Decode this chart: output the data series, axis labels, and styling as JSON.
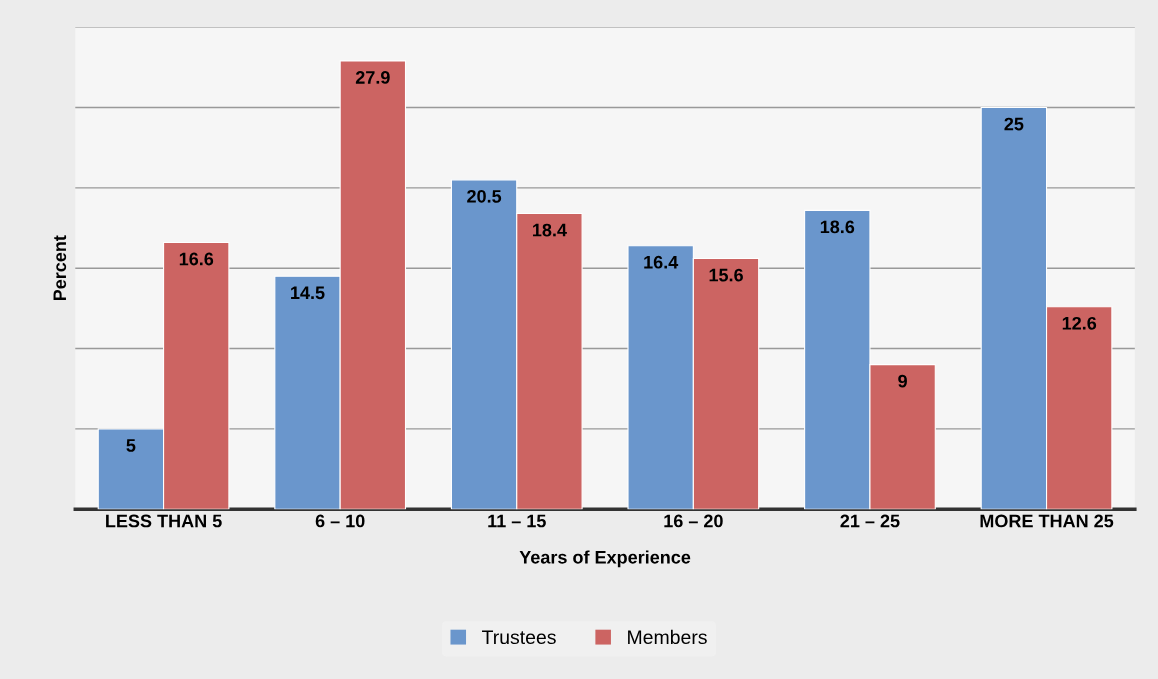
{
  "chart_data": {
    "type": "bar",
    "xlabel": "Years of Experience",
    "ylabel": "Percent",
    "categories": [
      "LESS THAN 5",
      "6 – 10",
      "11 – 15",
      "16 – 20",
      "21 – 25",
      "MORE THAN 25"
    ],
    "series": [
      {
        "name": "Trustees",
        "color": "#6a96cc",
        "values": [
          5,
          14.5,
          20.5,
          16.4,
          18.6,
          25
        ]
      },
      {
        "name": "Members",
        "color": "#cc6462",
        "values": [
          16.6,
          27.9,
          18.4,
          15.6,
          9,
          12.6
        ]
      }
    ],
    "ylim": [
      0,
      30
    ],
    "yticks": [
      {
        "value": 0,
        "label": null
      },
      {
        "value": 5,
        "label": null
      },
      {
        "value": 10,
        "label": null
      },
      {
        "value": 15,
        "label": null
      },
      {
        "value": 20,
        "label": null
      },
      {
        "value": 25,
        "label": null
      },
      {
        "value": 30,
        "label": null
      }
    ],
    "tick_labels": "x",
    "grid": "y",
    "legend": "bottom",
    "data_labels": true
  }
}
